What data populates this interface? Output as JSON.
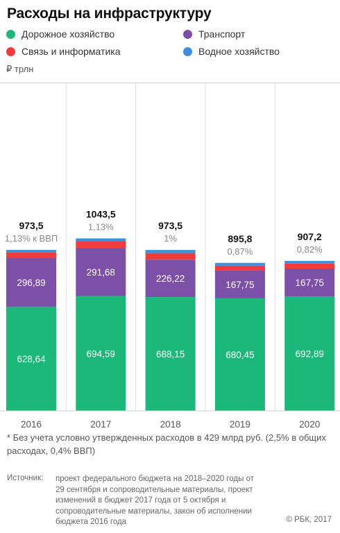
{
  "title": "Расходы на инфраструктуру",
  "unit_label": "₽ трлн",
  "legend": [
    {
      "label": "Дорожное хозяйство",
      "color": "#1bb87a"
    },
    {
      "label": "Транспорт",
      "color": "#7d50a8"
    },
    {
      "label": "Связь и информатика",
      "color": "#f23c3c"
    },
    {
      "label": "Водное хозяйство",
      "color": "#3d8fe0"
    }
  ],
  "chart_data": {
    "type": "bar",
    "stacked": true,
    "categories": [
      "2016",
      "2017",
      "2018",
      "2019",
      "2020"
    ],
    "series": [
      {
        "name": "Дорожное хозяйство",
        "color": "#1bb87a",
        "values": [
          628.64,
          694.59,
          688.15,
          680.45,
          692.89
        ],
        "labels": [
          "628,64",
          "694,59",
          "688,15",
          "680,45",
          "692,89"
        ]
      },
      {
        "name": "Транспорт",
        "color": "#7d50a8",
        "values": [
          296.89,
          291.68,
          226.22,
          167.75,
          167.75
        ],
        "labels": [
          "296,89",
          "291,68",
          "226,22",
          "167,75",
          "167,75"
        ]
      },
      {
        "name": "Связь и информатика",
        "color": "#f23c3c",
        "values": [
          33,
          40,
          40,
          30,
          30
        ]
      },
      {
        "name": "Водное хозяйство",
        "color": "#3d8fe0",
        "values": [
          15,
          17,
          19,
          17,
          16.6
        ]
      }
    ],
    "totals": [
      "973,5",
      "1043,5",
      "973,5",
      "895,8",
      "907,2"
    ],
    "gdp_shares": [
      "1,13% к ВВП",
      "1,13%",
      "1%",
      "0,87%",
      "0,82%"
    ],
    "ylim": [
      0,
      1200
    ]
  },
  "footnote": "* Без учета условно утвержденных расходов в 429 млрд руб. (2,5% в общих расходах, 0,4% ВВП)",
  "source_label": "Источник:",
  "source_text": "проект федерального бюджета на 2018–2020 годы от 29 сентября и сопроводительные материалы, проект изменений в бюджет 2017 года от 5 октября и сопроводительные материалы, закон об исполнении бюджета 2016 года",
  "copyright": "© РБК, 2017"
}
